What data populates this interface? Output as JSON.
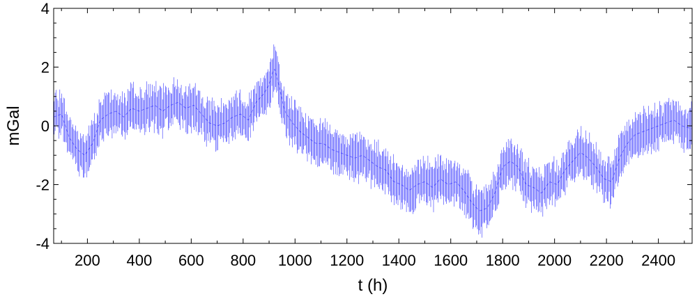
{
  "chart_data": {
    "type": "line",
    "title": "",
    "xlabel": "t (h)",
    "ylabel": "mGal",
    "xlim": [
      70,
      2530
    ],
    "ylim": [
      -4,
      4
    ],
    "xticks": [
      200,
      400,
      600,
      800,
      1000,
      1200,
      1400,
      1600,
      1800,
      2000,
      2200,
      2400
    ],
    "yticks": [
      -4,
      -2,
      0,
      2,
      4
    ],
    "grid": false,
    "legend": "none",
    "colors": {
      "signal": "#0000ff",
      "axes": "#000000"
    },
    "series": [
      {
        "x": [
          70,
          100,
          130,
          160,
          190,
          220,
          250,
          280,
          310,
          340,
          370,
          400,
          430,
          460,
          490,
          520,
          550,
          580,
          610,
          640,
          670,
          700,
          730,
          760,
          790,
          820,
          850,
          880,
          900,
          920,
          940,
          960,
          990,
          1020,
          1050,
          1080,
          1110,
          1140,
          1170,
          1200,
          1230,
          1260,
          1290,
          1320,
          1350,
          1380,
          1410,
          1440,
          1470,
          1500,
          1530,
          1560,
          1590,
          1620,
          1650,
          1680,
          1710,
          1740,
          1770,
          1800,
          1830,
          1860,
          1890,
          1920,
          1950,
          1980,
          2010,
          2040,
          2070,
          2100,
          2130,
          2160,
          2190,
          2220,
          2250,
          2280,
          2310,
          2340,
          2370,
          2400,
          2430,
          2460,
          2490,
          2530
        ],
        "y": [
          0.3,
          0.4,
          -0.4,
          -0.8,
          -1.0,
          -0.6,
          0.2,
          0.4,
          0.5,
          0.3,
          0.6,
          0.5,
          0.6,
          0.7,
          0.5,
          0.7,
          0.8,
          0.6,
          0.7,
          0.4,
          0.1,
          0.0,
          0.1,
          0.3,
          0.4,
          0.2,
          0.8,
          1.1,
          1.4,
          2.0,
          1.3,
          0.5,
          0.1,
          -0.2,
          -0.4,
          -0.6,
          -0.6,
          -0.8,
          -0.9,
          -1.0,
          -1.1,
          -1.0,
          -1.2,
          -1.4,
          -1.5,
          -1.9,
          -2.0,
          -2.2,
          -2.0,
          -1.9,
          -2.1,
          -1.8,
          -2.0,
          -1.9,
          -2.2,
          -2.6,
          -2.9,
          -2.8,
          -2.3,
          -1.4,
          -1.2,
          -1.4,
          -2.0,
          -2.1,
          -2.3,
          -1.9,
          -2.0,
          -1.5,
          -1.2,
          -0.9,
          -1.1,
          -1.4,
          -1.8,
          -1.9,
          -1.1,
          -0.6,
          -0.3,
          -0.2,
          -0.1,
          0.0,
          0.1,
          0.2,
          0.0,
          -0.1
        ],
        "spread": 0.65
      }
    ]
  }
}
